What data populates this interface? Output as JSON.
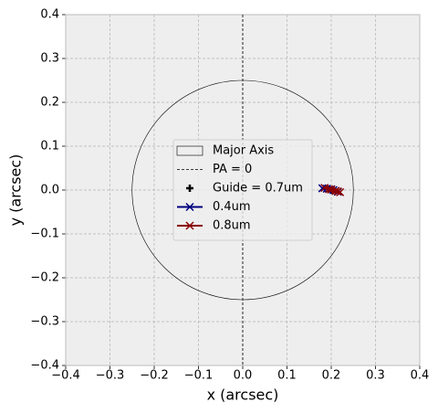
{
  "chart_data": {
    "type": "scatter",
    "xlabel": "x (arcsec)",
    "ylabel": "y (arcsec)",
    "xlim": [
      -0.4,
      0.4
    ],
    "ylim": [
      -0.4,
      0.4
    ],
    "xticks": [
      {
        "value": -0.4,
        "label": "−0.4"
      },
      {
        "value": -0.3,
        "label": "−0.3"
      },
      {
        "value": -0.2,
        "label": "−0.2"
      },
      {
        "value": -0.1,
        "label": "−0.1"
      },
      {
        "value": 0,
        "label": "0.0"
      },
      0.1,
      0.2,
      0.3,
      0.4
    ],
    "yticks": [
      {
        "value": -0.4,
        "label": "−0.4"
      },
      {
        "value": -0.3,
        "label": "−0.3"
      },
      {
        "value": -0.2,
        "label": "−0.2"
      },
      {
        "value": -0.1,
        "label": "−0.1"
      },
      {
        "value": 0,
        "label": "0.0"
      },
      0.1,
      0.2,
      0.3,
      0.4
    ],
    "grid": true,
    "legend": "center",
    "circle": {
      "name": "Major Axis",
      "radius": 0.25,
      "color": "#000000"
    },
    "pa_line": {
      "name": "PA = 0",
      "x": 0,
      "color": "#000000"
    },
    "series": [
      {
        "name": "Guide = 0.7um",
        "color": "#000000",
        "marker": "plus",
        "x": [
          0.2
        ],
        "y": [
          0.0
        ]
      },
      {
        "name": "0.4um",
        "color": "#000080",
        "marker": "x",
        "x": [
          0.18,
          0.19,
          0.2,
          0.205,
          0.21,
          0.215
        ],
        "y": [
          0.004,
          0.003,
          0.002,
          0.0,
          -0.002,
          -0.004
        ]
      },
      {
        "name": "0.8um",
        "color": "#8b0000",
        "marker": "x",
        "x": [
          0.185,
          0.195,
          0.2,
          0.21,
          0.215,
          0.22
        ],
        "y": [
          0.005,
          0.002,
          0.001,
          -0.002,
          -0.003,
          -0.005
        ]
      }
    ]
  }
}
